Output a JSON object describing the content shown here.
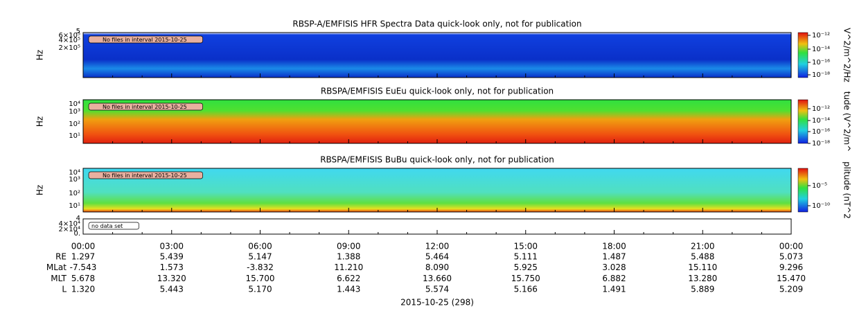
{
  "panels": [
    {
      "title": "RBSP-A/EMFISIS  HFR Spectra Data quick-look only, not for publication",
      "ylabel": "Hz",
      "yticks": [
        "5",
        "6×10⁵",
        "4×10⁵",
        "2×10⁵"
      ],
      "cbar_label": "V^2/m^2/Hz",
      "cbar_ticks": [
        "10⁻¹²",
        "10⁻¹⁴",
        "10⁻¹⁶",
        "10⁻¹⁸"
      ],
      "annotation": "No files in interval 2015-10-25"
    },
    {
      "title": "RBSPA/EMFISIS  EuEu quick-look only, not for publication",
      "ylabel": "Hz",
      "yticks": [
        "10⁴",
        "10³",
        "10²",
        "10¹"
      ],
      "cbar_label": "tude (V^2/m^",
      "cbar_ticks": [
        "10⁻¹²",
        "10⁻¹⁴",
        "10⁻¹⁶",
        "10⁻¹⁸"
      ],
      "annotation": "No files in interval 2015-10-25"
    },
    {
      "title": "RBSPA/EMFISIS  BuBu quick-look only, not for publication",
      "ylabel": "Hz",
      "yticks": [
        "10⁴",
        "10³",
        "10²",
        "10¹"
      ],
      "cbar_label": "plitude (nT^2",
      "cbar_ticks": [
        "10⁻⁵",
        "10⁻¹⁰"
      ],
      "annotation": "No files in interval 2015-10-25"
    },
    {
      "yticks": [
        "4",
        "4×10⁴",
        "2×10⁴",
        "0."
      ],
      "annotation": "no data set"
    }
  ],
  "time_axis": {
    "labels": [
      "00:00",
      "03:00",
      "06:00",
      "09:00",
      "12:00",
      "15:00",
      "18:00",
      "21:00",
      "00:00"
    ],
    "date": "2015-10-25 (298)"
  },
  "ephemeris": [
    {
      "name": "RE",
      "values": [
        "1.297",
        "5.439",
        "5.147",
        "1.388",
        "5.464",
        "5.111",
        "1.487",
        "5.488",
        "5.073"
      ]
    },
    {
      "name": "MLat",
      "values": [
        "-7.543",
        "1.573",
        "-3.832",
        "11.210",
        "8.090",
        "5.925",
        "3.028",
        "15.110",
        "9.296"
      ]
    },
    {
      "name": "MLT",
      "values": [
        "5.678",
        "13.320",
        "15.700",
        "6.622",
        "13.660",
        "15.750",
        "6.882",
        "13.280",
        "15.470"
      ]
    },
    {
      "name": "L",
      "values": [
        "1.320",
        "5.443",
        "5.170",
        "1.443",
        "5.574",
        "5.166",
        "1.491",
        "5.889",
        "5.209"
      ]
    }
  ]
}
